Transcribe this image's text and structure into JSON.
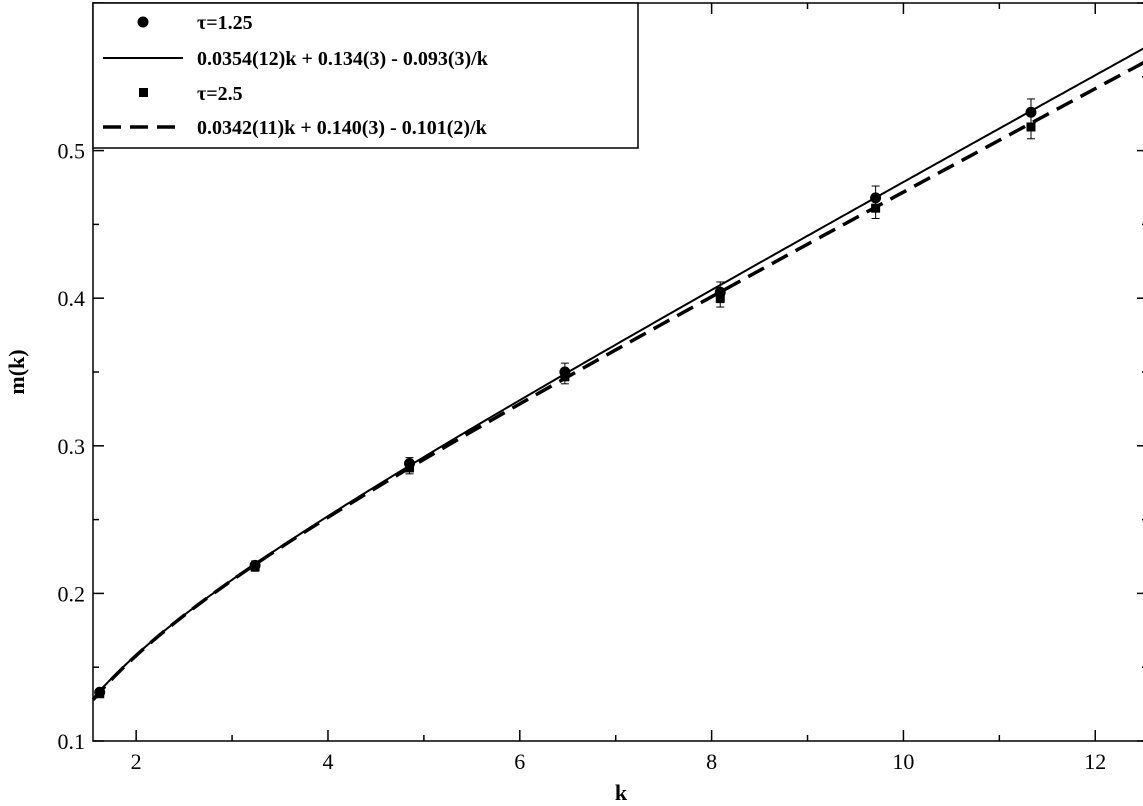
{
  "chart_data": {
    "type": "scatter",
    "title": "",
    "xlabel": "k",
    "ylabel": "m(k)",
    "xlim": [
      1.55,
      12.55
    ],
    "ylim": [
      0.1,
      0.6
    ],
    "x_ticks": [
      2,
      4,
      6,
      8,
      10,
      12
    ],
    "y_ticks": [
      0.1,
      0.2,
      0.3,
      0.4,
      0.5
    ],
    "x_tick_labels": [
      "2",
      "4",
      "6",
      "8",
      "10",
      "12"
    ],
    "y_tick_labels": [
      "0.1",
      "0.2",
      "0.3",
      "0.4",
      "0.5"
    ],
    "grid": false,
    "legend_position": "top-left",
    "series": [
      {
        "name": "τ=1.25",
        "marker": "circle",
        "x": [
          1.62,
          3.24,
          4.85,
          6.47,
          8.09,
          9.71,
          11.33
        ],
        "y": [
          0.133,
          0.219,
          0.288,
          0.35,
          0.404,
          0.468,
          0.526
        ],
        "err": [
          0.002,
          0.003,
          0.004,
          0.006,
          0.007,
          0.008,
          0.009
        ]
      },
      {
        "name": "τ=2.5",
        "marker": "square",
        "x": [
          1.62,
          3.24,
          4.85,
          6.47,
          8.09,
          9.71,
          11.33
        ],
        "y": [
          0.132,
          0.218,
          0.285,
          0.347,
          0.4,
          0.461,
          0.516
        ],
        "err": [
          0.002,
          0.003,
          0.004,
          0.005,
          0.006,
          0.007,
          0.008
        ]
      }
    ],
    "fits": [
      {
        "name": "0.0354(12)k + 0.134(3) - 0.093(3)/k",
        "a": 0.0354,
        "b": 0.134,
        "c": 0.093,
        "style": "solid"
      },
      {
        "name": "0.0342(11)k + 0.140(3) - 0.101(2)/k",
        "a": 0.0342,
        "b": 0.14,
        "c": 0.101,
        "style": "dashed"
      }
    ]
  }
}
